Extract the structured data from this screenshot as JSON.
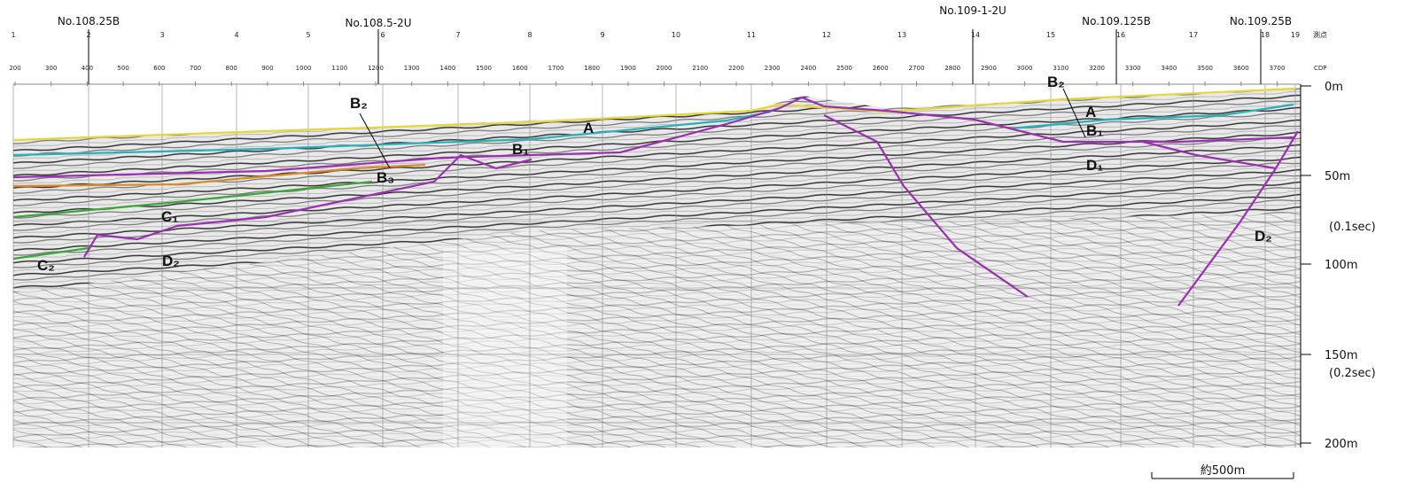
{
  "stations": {
    "label": "測点",
    "items": [
      "1",
      "2",
      "3",
      "4",
      "5",
      "6",
      "7",
      "8",
      "9",
      "10",
      "11",
      "12",
      "13",
      "14",
      "15",
      "16",
      "17",
      "18",
      "19"
    ]
  },
  "cdp": {
    "label": "CDP",
    "items": [
      "200",
      "300",
      "400",
      "500",
      "600",
      "700",
      "800",
      "900",
      "1000",
      "1100",
      "1200",
      "1300",
      "1400",
      "1500",
      "1600",
      "1700",
      "1800",
      "1900",
      "2000",
      "2100",
      "2200",
      "2300",
      "2400",
      "2500",
      "2600",
      "2700",
      "2800",
      "2900",
      "3000",
      "3100",
      "3200",
      "3300",
      "3400",
      "3500",
      "3600",
      "3700"
    ]
  },
  "survey_lines": [
    "No.108.25B",
    "No.108.5-2U",
    "No.109-1-2U",
    "No.109.125B",
    "No.109.25B"
  ],
  "depth_axis": [
    "0m",
    "50m",
    "(0.1sec)",
    "100m",
    "150m",
    "(0.2sec)",
    "200m"
  ],
  "horizon_labels": [
    "B₂",
    "B₃",
    "B₁",
    "A",
    "C₁",
    "C₂",
    "D₂",
    "B₂",
    "A",
    "B₁",
    "D₁",
    "D₂"
  ],
  "scale_bar": "約500m"
}
